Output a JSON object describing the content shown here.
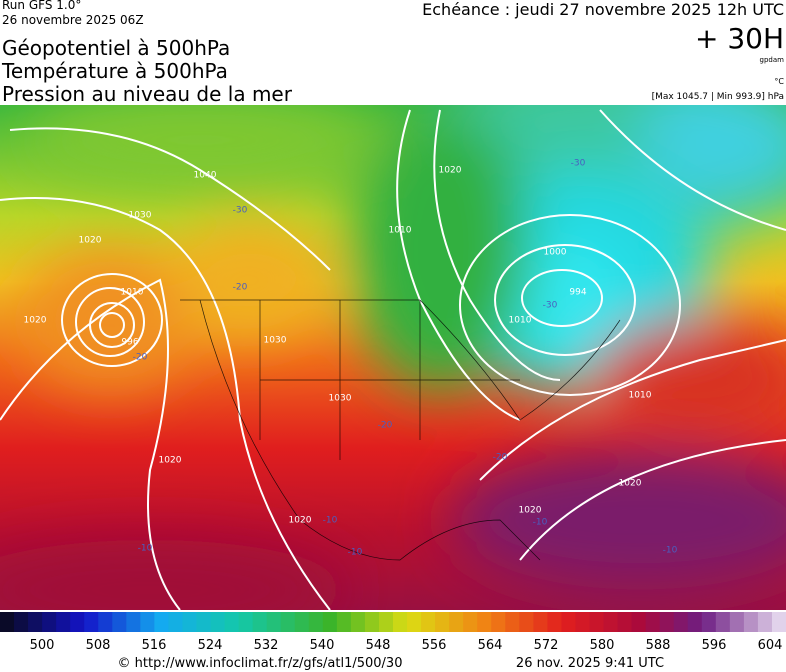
{
  "header": {
    "run": "Run GFS 1.0°",
    "run_date": "26 novembre 2025 06Z",
    "titles": [
      "Géopotentiel à 500hPa",
      "Température à 500hPa",
      "Pression au niveau de la mer"
    ],
    "valid": "Echéance : jeudi 27 novembre 2025 12h UTC",
    "lead": "+ 30H",
    "unit_geo": "gpdam",
    "unit_temp": "°C",
    "pressure_range": "[Max 1045.7 | Min 993.9] hPa"
  },
  "map": {
    "contour_labels": [
      "1040",
      "1030",
      "1020",
      "1020",
      "1010",
      "996",
      "1020",
      "1030",
      "1030",
      "1020",
      "1010",
      "1000",
      "994",
      "1010",
      "1010",
      "1020",
      "1020",
      "1020",
      "-30",
      "-30",
      "-30",
      "-20",
      "-20",
      "-20",
      "-20",
      "-10",
      "-10",
      "-10",
      "-10",
      "-10"
    ]
  },
  "colorbar": {
    "labels": [
      "500",
      "508",
      "516",
      "524",
      "532",
      "540",
      "548",
      "556",
      "564",
      "572",
      "580",
      "588",
      "596",
      "604"
    ]
  },
  "footer": {
    "source": "© http://www.infoclimat.fr/z/gfs/atl1/500/30",
    "generated": "26 nov. 2025  9:41 UTC"
  }
}
